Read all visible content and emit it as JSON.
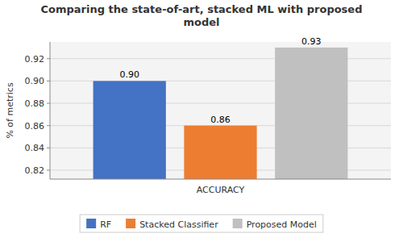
{
  "chart_data": {
    "type": "bar",
    "title": "Comparing the state-of-art, stacked ML with proposed\nmodel",
    "categories": [
      null
    ],
    "series": [
      {
        "name": "RF",
        "color": "#4472C4",
        "values": [
          0.9
        ],
        "value_labels": [
          "0.90"
        ]
      },
      {
        "name": "Stacked Classifier",
        "color": "#ED7D31",
        "values": [
          0.86
        ],
        "value_labels": [
          "0.86"
        ]
      },
      {
        "name": "Proposed Model",
        "color": "#C0C0C0",
        "values": [
          0.93
        ],
        "value_labels": [
          "0.93"
        ]
      }
    ],
    "xlabel": "ACCURACY",
    "ylabel": "% of metrics",
    "ylim": [
      0.812,
      0.935
    ],
    "yticks": [
      0.82,
      0.84,
      0.86,
      0.88,
      {
        "value": 0.9,
        "label": "0.90"
      },
      0.92
    ],
    "grid": true,
    "legend": "bottom",
    "data_labels": true,
    "tick_labels": "y"
  }
}
